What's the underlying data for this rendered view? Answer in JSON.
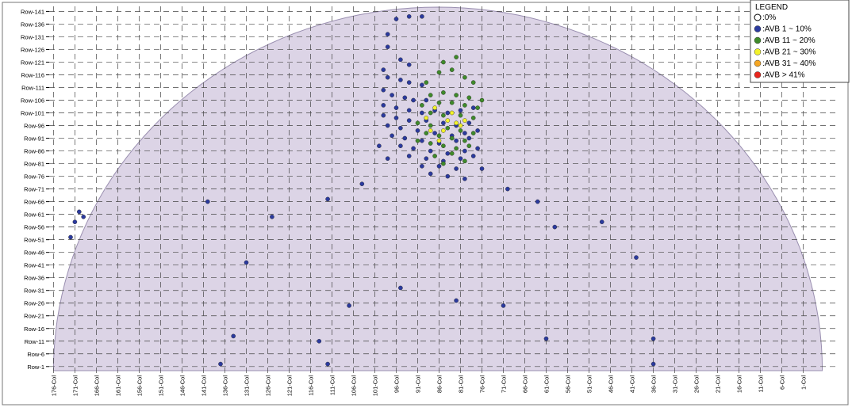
{
  "chart_data": {
    "type": "scatter",
    "title": "",
    "xlabel": "",
    "ylabel": "",
    "row_labels": [
      "Row-1",
      "Row-6",
      "Row-11",
      "Row-16",
      "Row-21",
      "Row-26",
      "Row-31",
      "Row-36",
      "Row-41",
      "Row-46",
      "Row-51",
      "Row-56",
      "Row-61",
      "Row-66",
      "Row-71",
      "Row-76",
      "Row-81",
      "Row-86",
      "Row-91",
      "Row-96",
      "Row-101",
      "Row-106",
      "Row-111",
      "Row-116",
      "Row-121",
      "Row-126",
      "Row-131",
      "Row-136",
      "Row-141"
    ],
    "row_values": [
      1,
      6,
      11,
      16,
      21,
      26,
      31,
      36,
      41,
      46,
      51,
      56,
      61,
      66,
      71,
      76,
      81,
      86,
      91,
      96,
      101,
      106,
      111,
      116,
      121,
      126,
      131,
      136,
      141
    ],
    "col_labels": [
      "176-Col",
      "171-Col",
      "166-Col",
      "161-Col",
      "156-Col",
      "151-Col",
      "146-Col",
      "141-Col",
      "136-Col",
      "131-Col",
      "126-Col",
      "121-Col",
      "116-Col",
      "111-Col",
      "106-Col",
      "101-Col",
      "96-Col",
      "91-Col",
      "86-Col",
      "81-Col",
      "76-Col",
      "71-Col",
      "66-Col",
      "61-Col",
      "56-Col",
      "51-Col",
      "46-Col",
      "41-Col",
      "36-Col",
      "31-Col",
      "26-Col",
      "21-Col",
      "16-Col",
      "11-Col",
      "6-Col",
      "1-Col"
    ],
    "col_values": [
      176,
      171,
      166,
      161,
      156,
      151,
      146,
      141,
      136,
      131,
      126,
      121,
      116,
      111,
      106,
      101,
      96,
      91,
      86,
      81,
      76,
      71,
      66,
      61,
      56,
      51,
      46,
      41,
      36,
      31,
      26,
      21,
      16,
      11,
      6,
      1
    ],
    "xlim": [
      177,
      0
    ],
    "ylim": [
      0,
      143
    ],
    "grid": true,
    "legend": {
      "title": "LEGEND",
      "placement": "top-right",
      "entries": [
        {
          "label": ":0%",
          "color": "#ffffff",
          "open": true
        },
        {
          "label": ":AVB 1 ~ 10%",
          "color": "#2b3a9e"
        },
        {
          "label": ":AVB 11 ~ 20%",
          "color": "#3f8a2a"
        },
        {
          "label": ":AVB 21 ~ 30%",
          "color": "#f2f22a"
        },
        {
          "label": ":AVB 31 ~ 40%",
          "color": "#f5a623"
        },
        {
          "label": ":AVB > 41%",
          "color": "#e8261e"
        }
      ]
    },
    "series": [
      {
        "name": "AVB 1 ~ 10%",
        "color": "#2b3a9e",
        "points": [
          [
            96,
            138
          ],
          [
            93,
            139
          ],
          [
            90,
            139
          ],
          [
            98,
            132
          ],
          [
            98,
            127
          ],
          [
            95,
            122
          ],
          [
            93,
            120
          ],
          [
            99,
            118
          ],
          [
            98,
            115
          ],
          [
            95,
            114
          ],
          [
            93,
            113
          ],
          [
            90,
            112
          ],
          [
            99,
            110
          ],
          [
            97,
            108
          ],
          [
            94,
            107
          ],
          [
            92,
            106
          ],
          [
            89,
            106
          ],
          [
            99,
            104
          ],
          [
            96,
            103
          ],
          [
            93,
            102
          ],
          [
            90,
            101
          ],
          [
            87,
            102
          ],
          [
            84,
            101
          ],
          [
            81,
            102
          ],
          [
            78,
            103
          ],
          [
            99,
            100
          ],
          [
            96,
            99
          ],
          [
            93,
            98
          ],
          [
            89,
            98
          ],
          [
            85,
            97
          ],
          [
            82,
            96
          ],
          [
            79,
            97
          ],
          [
            98,
            96
          ],
          [
            95,
            95
          ],
          [
            91,
            94
          ],
          [
            87,
            93
          ],
          [
            83,
            92
          ],
          [
            80,
            93
          ],
          [
            77,
            94
          ],
          [
            97,
            92
          ],
          [
            94,
            91
          ],
          [
            90,
            90
          ],
          [
            86,
            89
          ],
          [
            82,
            90
          ],
          [
            79,
            91
          ],
          [
            95,
            88
          ],
          [
            92,
            87
          ],
          [
            88,
            86
          ],
          [
            84,
            85
          ],
          [
            80,
            86
          ],
          [
            77,
            87
          ],
          [
            93,
            84
          ],
          [
            89,
            83
          ],
          [
            85,
            82
          ],
          [
            81,
            83
          ],
          [
            78,
            84
          ],
          [
            90,
            80
          ],
          [
            86,
            80
          ],
          [
            82,
            79
          ],
          [
            88,
            77
          ],
          [
            84,
            76
          ],
          [
            80,
            75
          ],
          [
            76,
            79
          ],
          [
            98,
            83
          ],
          [
            100,
            88
          ],
          [
            104,
            73
          ],
          [
            112,
            67
          ],
          [
            70,
            71
          ],
          [
            63,
            66
          ],
          [
            48,
            58
          ],
          [
            59,
            56
          ],
          [
            170,
            62
          ],
          [
            169,
            60
          ],
          [
            171,
            58
          ],
          [
            172,
            52
          ],
          [
            125,
            60
          ],
          [
            140,
            66
          ],
          [
            131,
            42
          ],
          [
            40,
            44
          ],
          [
            95,
            32
          ],
          [
            82,
            27
          ],
          [
            71,
            25
          ],
          [
            107,
            25
          ],
          [
            134,
            13
          ],
          [
            114,
            11
          ],
          [
            61,
            12
          ],
          [
            36,
            12
          ],
          [
            137,
            2
          ],
          [
            112,
            2
          ],
          [
            36,
            2
          ]
        ]
      },
      {
        "name": "AVB 11 ~ 20%",
        "color": "#3f8a2a",
        "points": [
          [
            88,
            108
          ],
          [
            85,
            109
          ],
          [
            82,
            108
          ],
          [
            79,
            107
          ],
          [
            76,
            106
          ],
          [
            90,
            104
          ],
          [
            86,
            105
          ],
          [
            83,
            105
          ],
          [
            80,
            104
          ],
          [
            77,
            103
          ],
          [
            88,
            101
          ],
          [
            85,
            100
          ],
          [
            81,
            100
          ],
          [
            78,
            99
          ],
          [
            91,
            97
          ],
          [
            88,
            96
          ],
          [
            84,
            95
          ],
          [
            81,
            94
          ],
          [
            78,
            93
          ],
          [
            89,
            93
          ],
          [
            86,
            92
          ],
          [
            83,
            91
          ],
          [
            80,
            90
          ],
          [
            91,
            90
          ],
          [
            88,
            89
          ],
          [
            85,
            88
          ],
          [
            82,
            87
          ],
          [
            79,
            88
          ],
          [
            87,
            84
          ],
          [
            83,
            85
          ],
          [
            80,
            82
          ],
          [
            85,
            81
          ],
          [
            89,
            113
          ],
          [
            86,
            117
          ],
          [
            83,
            118
          ],
          [
            80,
            115
          ],
          [
            78,
            113
          ],
          [
            85,
            121
          ],
          [
            82,
            123
          ]
        ]
      },
      {
        "name": "AVB 21 ~ 30%",
        "color": "#f2f22a",
        "points": [
          [
            87,
            103
          ],
          [
            84,
            98
          ],
          [
            82,
            97
          ],
          [
            86,
            90
          ],
          [
            81,
            96
          ],
          [
            89,
            99
          ],
          [
            83,
            101
          ],
          [
            80,
            98
          ],
          [
            85,
            94
          ],
          [
            88,
            94
          ]
        ]
      }
    ]
  }
}
